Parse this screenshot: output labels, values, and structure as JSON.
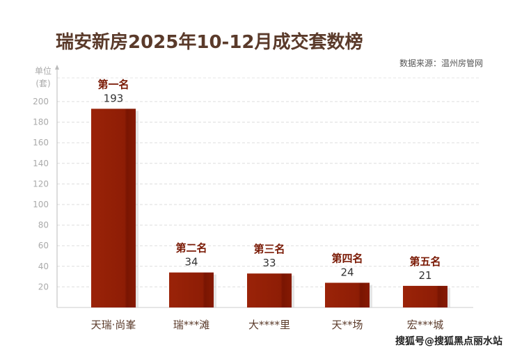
{
  "chart_data": {
    "type": "bar",
    "title": "瑞安新房2025年10-12月成交套数榜",
    "source": "数据来源：温州房管网",
    "ylabel_line1": "单位",
    "ylabel_line2": "(套)",
    "xlabel": "",
    "ylim": [
      0,
      200
    ],
    "yticks": [
      20,
      40,
      60,
      80,
      100,
      120,
      140,
      160,
      180,
      200
    ],
    "grid": true,
    "categories": [
      "天瑞·尚峯",
      "瑞***滩",
      "大****里",
      "天**场",
      "宏***城"
    ],
    "ranks": [
      "第一名",
      "第二名",
      "第三名",
      "第四名",
      "第五名"
    ],
    "values": [
      193,
      34,
      33,
      24,
      21
    ],
    "bar_color": "#8e1d05"
  },
  "watermark": "搜狐号@搜狐黑点丽水站"
}
